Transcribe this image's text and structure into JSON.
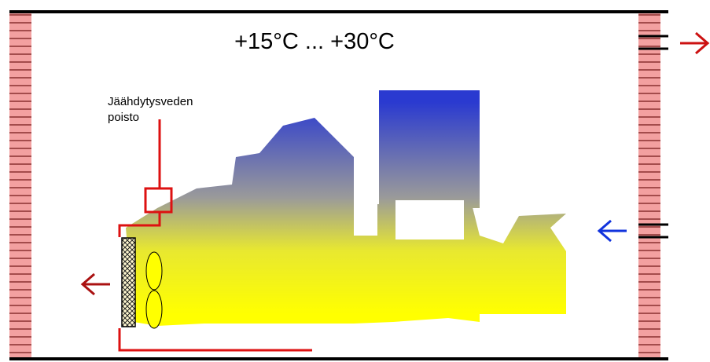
{
  "title": "+15°C ... +30°C",
  "label": {
    "lines": [
      "Jäähdytysveden",
      "poisto"
    ]
  }
}
